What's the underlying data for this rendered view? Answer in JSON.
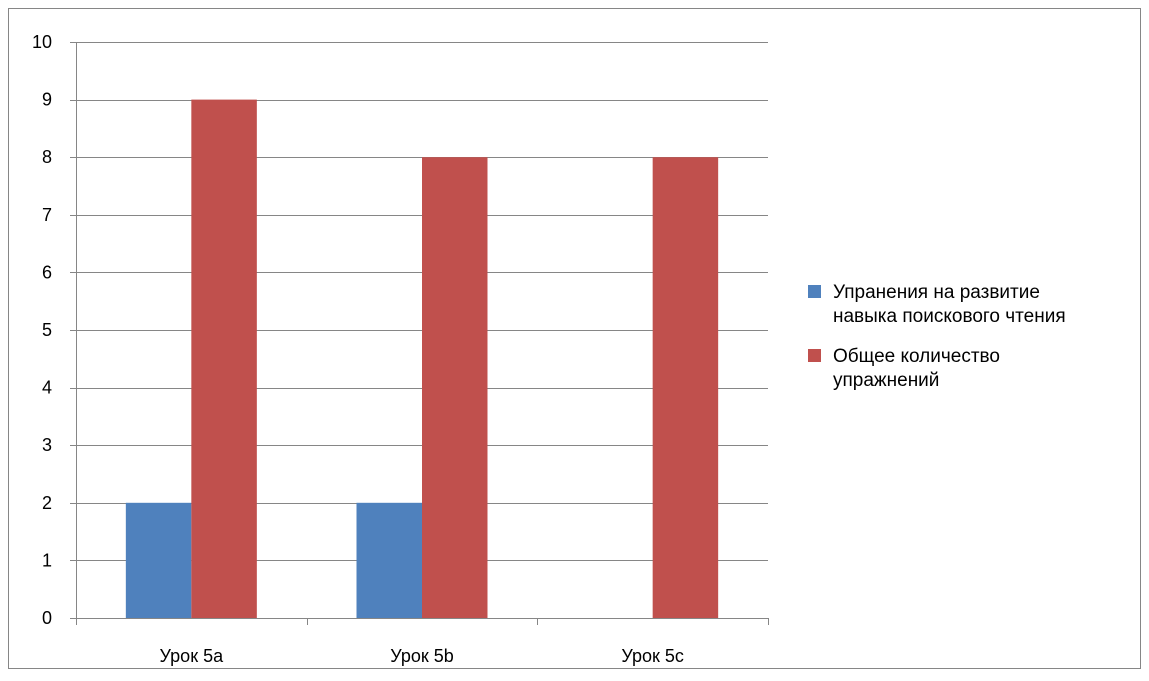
{
  "chart_data": {
    "type": "bar",
    "title": "",
    "xlabel": "",
    "ylabel": "",
    "categories": [
      "Урок 5a",
      "Урок 5b",
      "Урок 5c"
    ],
    "series": [
      {
        "name": "Упранения на развитие навыка поискового чтения",
        "name_lines": [
          "Упранения на развитие",
          "навыка поискового чтения"
        ],
        "color": "#4F81BD",
        "values": [
          2,
          2,
          0
        ]
      },
      {
        "name": "Общее количество упражнений",
        "name_lines": [
          "Общее количество",
          "упражнений"
        ],
        "color": "#C0504D",
        "values": [
          9,
          8,
          8
        ]
      }
    ],
    "ylim": [
      0,
      10
    ],
    "yticks": [
      "0",
      "1",
      "2",
      "3",
      "4",
      "5",
      "6",
      "7",
      "8",
      "9",
      "10"
    ],
    "grid": true,
    "legend_position": "right"
  }
}
